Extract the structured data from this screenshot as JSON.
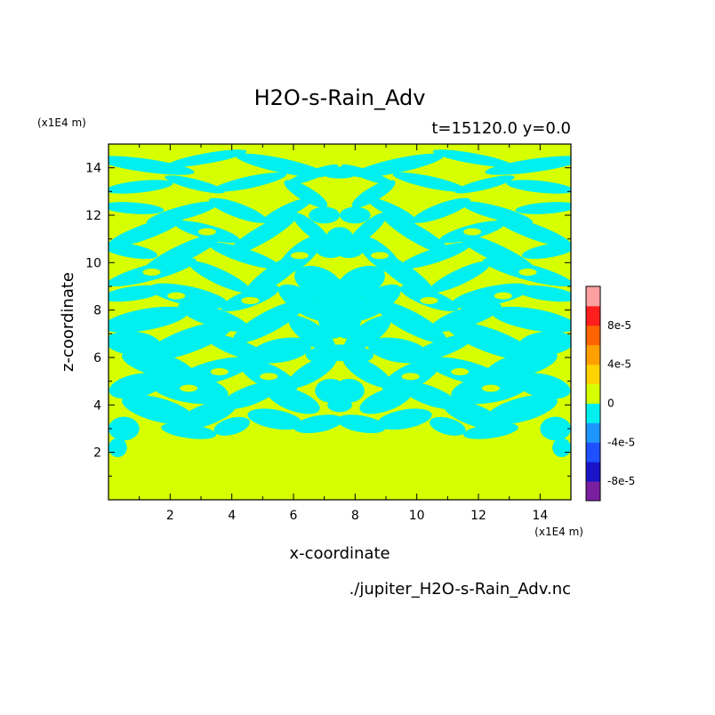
{
  "chart_data": {
    "type": "heatmap",
    "title": "H2O-s-Rain_Adv",
    "subtitle": "t=15120.0 y=0.0",
    "xlabel": "x-coordinate",
    "ylabel": "z-coordinate",
    "x_unit": "(x1E4 m)",
    "y_unit": "(x1E4 m)",
    "source": "./jupiter_H2O-s-Rain_Adv.nc",
    "xlim": [
      0,
      15
    ],
    "ylim": [
      0,
      15
    ],
    "x_ticks": [
      "2",
      "4",
      "6",
      "8",
      "10",
      "12",
      "14"
    ],
    "y_ticks": [
      "2",
      "4",
      "6",
      "8",
      "10",
      "12",
      "14"
    ],
    "background_level": "0",
    "grid": false,
    "legend": "right",
    "colorbar": {
      "levels": [
        {
          "color": "#7a1fa0"
        },
        {
          "color": "#1a14c8"
        },
        {
          "color": "#1e50ff"
        },
        {
          "color": "#1e96ff"
        },
        {
          "color": "#00f0f0"
        },
        {
          "color": "#d6ff00"
        },
        {
          "color": "#ffd200"
        },
        {
          "color": "#ffa000"
        },
        {
          "color": "#ff6400"
        },
        {
          "color": "#ff1e1e"
        },
        {
          "color": "#ffa0a0"
        }
      ],
      "labels": [
        {
          "text": "8e-5",
          "value": 8e-05
        },
        {
          "text": "4e-5",
          "value": 4e-05
        },
        {
          "text": "0",
          "value": 0
        },
        {
          "text": "-4e-5",
          "value": -4e-05
        },
        {
          "text": "-8e-5",
          "value": -8e-05
        }
      ]
    },
    "negative_regions_color": "#00f0f0",
    "zero_field_color": "#d6ff00"
  }
}
